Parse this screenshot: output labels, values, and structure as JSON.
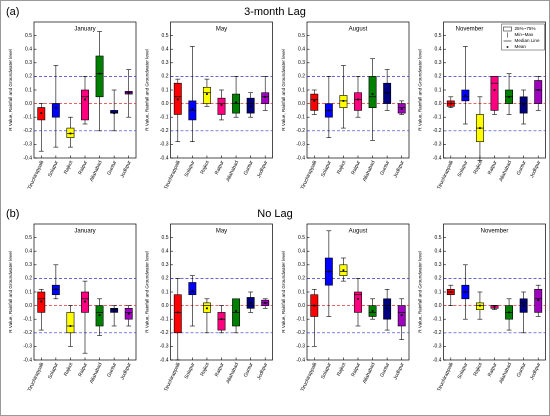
{
  "rows": [
    {
      "label": "(a)",
      "title": "3-month Lag"
    },
    {
      "label": "(b)",
      "title": "No Lag"
    }
  ],
  "chart_data": [
    {
      "type": "box",
      "title": "January",
      "ylabel": "R Value, Rainfall and Groundwater level",
      "categories": [
        "Tiruchirappalli",
        "Solapur",
        "Rajkot",
        "Raipur",
        "Allahabad",
        "Guntur",
        "Jodhpur"
      ],
      "colors": [
        "#ff0000",
        "#0000ff",
        "#ffff00",
        "#ff0080",
        "#008000",
        "#000080",
        "#a000c0"
      ],
      "min": [
        -0.35,
        -0.32,
        -0.32,
        -0.15,
        -0.2,
        -0.2,
        -0.1
      ],
      "q1": [
        -0.12,
        -0.1,
        -0.25,
        -0.12,
        0.05,
        -0.07,
        0.07
      ],
      "median": [
        -0.03,
        0.0,
        -0.22,
        0.05,
        0.22,
        -0.07,
        0.08
      ],
      "q3": [
        -0.03,
        0.0,
        -0.18,
        0.1,
        0.35,
        -0.05,
        0.09
      ],
      "max": [
        0.0,
        0.28,
        -0.1,
        0.2,
        0.53,
        0.1,
        0.25
      ],
      "mean": [
        -0.07,
        -0.03,
        -0.22,
        0.03,
        0.22,
        -0.07,
        0.08
      ],
      "ylim": [
        -0.4,
        0.6
      ],
      "yticks": [
        -0.4,
        -0.3,
        -0.2,
        -0.1,
        {
          "value": 0,
          "label": "0.0"
        },
        0.1,
        0.2,
        0.3,
        0.4,
        0.5
      ],
      "ref_lines": [
        {
          "value": 0.2,
          "color": "#3333cc"
        },
        {
          "value": 0,
          "color": "#dd3333"
        },
        {
          "value": -0.2,
          "color": "#3333cc"
        }
      ]
    },
    {
      "type": "box",
      "title": "May",
      "ylabel": "R Value, Rainfall and Groundwater level",
      "categories": [
        "Tiruchirappalli",
        "Solapur",
        "Rajkot",
        "Raipur",
        "Allahabad",
        "Guntur",
        "Jodhpur"
      ],
      "colors": [
        "#ff0000",
        "#0000ff",
        "#ffff00",
        "#ff0080",
        "#008000",
        "#000080",
        "#a000c0"
      ],
      "min": [
        -0.28,
        -0.28,
        -0.02,
        -0.12,
        -0.1,
        -0.1,
        -0.05
      ],
      "q1": [
        -0.08,
        -0.12,
        0.0,
        -0.08,
        -0.07,
        -0.07,
        0.0
      ],
      "median": [
        0.05,
        -0.05,
        0.08,
        0.0,
        0.0,
        0.0,
        0.05
      ],
      "q3": [
        0.15,
        0.02,
        0.12,
        0.04,
        0.07,
        0.04,
        0.08
      ],
      "max": [
        0.18,
        0.42,
        0.18,
        0.1,
        0.2,
        0.08,
        0.2
      ],
      "mean": [
        0.03,
        -0.04,
        0.07,
        -0.01,
        0.01,
        -0.02,
        0.05
      ],
      "ylim": [
        -0.4,
        0.6
      ],
      "yticks": [
        -0.4,
        -0.3,
        -0.2,
        -0.1,
        {
          "value": 0,
          "label": "0.0"
        },
        0.1,
        0.2,
        0.3,
        0.4,
        0.5
      ],
      "ref_lines": [
        {
          "value": 0.2,
          "color": "#3333cc"
        },
        {
          "value": 0,
          "color": "#dd3333"
        },
        {
          "value": -0.2,
          "color": "#3333cc"
        }
      ]
    },
    {
      "type": "box",
      "title": "August",
      "ylabel": "R Value, Rainfall and Groundwater level",
      "categories": [
        "Tiruchirappalli",
        "Solapur",
        "Rajkot",
        "Raipur",
        "Allahabad",
        "Guntur",
        "Jodhpur"
      ],
      "colors": [
        "#ff0000",
        "#0000ff",
        "#ffff00",
        "#ff0080",
        "#008000",
        "#000080",
        "#a000c0"
      ],
      "min": [
        -0.08,
        -0.25,
        -0.18,
        -0.1,
        -0.27,
        -0.05,
        -0.08
      ],
      "q1": [
        -0.05,
        -0.1,
        -0.03,
        -0.05,
        -0.03,
        0.0,
        -0.07
      ],
      "median": [
        0.03,
        -0.05,
        0.02,
        0.03,
        0.05,
        0.08,
        -0.03
      ],
      "q3": [
        0.07,
        0.0,
        0.06,
        0.08,
        0.2,
        0.15,
        0.0
      ],
      "max": [
        0.1,
        0.2,
        0.28,
        0.2,
        0.33,
        0.25,
        0.02
      ],
      "mean": [
        0.02,
        -0.05,
        0.02,
        0.03,
        0.07,
        0.08,
        -0.04
      ],
      "ylim": [
        -0.4,
        0.6
      ],
      "yticks": [
        -0.4,
        -0.3,
        -0.2,
        -0.1,
        {
          "value": 0,
          "label": "0.0"
        },
        0.1,
        0.2,
        0.3,
        0.4,
        0.5
      ],
      "ref_lines": [
        {
          "value": 0.2,
          "color": "#3333cc"
        },
        {
          "value": 0,
          "color": "#dd3333"
        },
        {
          "value": -0.2,
          "color": "#3333cc"
        }
      ]
    },
    {
      "type": "box",
      "title": "November",
      "ylabel": "R Value, Rainfall and Groundwater level",
      "categories": [
        "Tiruchirappalli",
        "Solapur",
        "Rajkot",
        "Raipur",
        "Allahabad",
        "Guntur",
        "Jodhpur"
      ],
      "colors": [
        "#ff0000",
        "#0000ff",
        "#ffff00",
        "#ff0080",
        "#008000",
        "#000080",
        "#a000c0"
      ],
      "min": [
        -0.03,
        -0.15,
        -0.42,
        -0.08,
        -0.08,
        -0.15,
        -0.05
      ],
      "q1": [
        -0.02,
        0.02,
        -0.28,
        -0.05,
        0.0,
        -0.07,
        0.0
      ],
      "median": [
        0.0,
        0.05,
        -0.18,
        0.15,
        0.05,
        0.0,
        0.1
      ],
      "q3": [
        0.02,
        0.1,
        -0.08,
        0.2,
        0.1,
        0.05,
        0.17
      ],
      "max": [
        0.05,
        0.42,
        0.05,
        0.2,
        0.22,
        0.1,
        0.2
      ],
      "mean": [
        0.0,
        0.06,
        -0.18,
        0.1,
        0.05,
        -0.01,
        0.1
      ],
      "ylim": [
        -0.4,
        0.6
      ],
      "yticks": [
        -0.4,
        -0.3,
        -0.2,
        -0.1,
        {
          "value": 0,
          "label": "0.0"
        },
        0.1,
        0.2,
        0.3,
        0.4,
        0.5
      ],
      "ref_lines": [
        {
          "value": 0.2,
          "color": "#3333cc"
        },
        {
          "value": 0,
          "color": "#dd3333"
        },
        {
          "value": -0.2,
          "color": "#3333cc"
        }
      ],
      "legend": [
        "25%~75%",
        "Min~Max",
        "Median Line",
        "Mean"
      ]
    },
    {
      "type": "box",
      "title": "January",
      "ylabel": "R Value, Rainfall and Groundwater level",
      "categories": [
        "Tiruchirappalli",
        "Solapur",
        "Rajkot",
        "Raipur",
        "Allahabad",
        "Guntur",
        "Jodhpur"
      ],
      "colors": [
        "#ff0000",
        "#0000ff",
        "#ffff00",
        "#ff0080",
        "#008000",
        "#000080",
        "#a000c0"
      ],
      "min": [
        -0.18,
        0.05,
        -0.3,
        -0.35,
        -0.22,
        -0.15,
        -0.15
      ],
      "q1": [
        -0.05,
        0.08,
        -0.2,
        -0.05,
        -0.15,
        -0.05,
        -0.1
      ],
      "median": [
        0.05,
        0.12,
        -0.15,
        0.05,
        -0.05,
        -0.03,
        -0.05
      ],
      "q3": [
        0.1,
        0.15,
        -0.05,
        0.1,
        0.0,
        -0.02,
        -0.02
      ],
      "max": [
        0.12,
        0.3,
        0.0,
        0.18,
        0.05,
        0.0,
        0.0
      ],
      "mean": [
        0.03,
        0.12,
        -0.15,
        0.03,
        -0.07,
        -0.04,
        -0.06
      ],
      "ylim": [
        -0.4,
        0.6
      ],
      "yticks": [
        -0.4,
        -0.3,
        -0.2,
        -0.1,
        {
          "value": 0,
          "label": "0.0"
        },
        0.1,
        0.2,
        0.3,
        0.4,
        0.5
      ],
      "ref_lines": [
        {
          "value": 0.2,
          "color": "#3333cc"
        },
        {
          "value": 0,
          "color": "#dd3333"
        },
        {
          "value": -0.2,
          "color": "#3333cc"
        }
      ]
    },
    {
      "type": "box",
      "title": "May",
      "ylabel": "R Value, Rainfall and Groundwater level",
      "categories": [
        "Tiruchirappalli",
        "Solapur",
        "Rajkot",
        "Raipur",
        "Allahabad",
        "Guntur",
        "Jodhpur"
      ],
      "colors": [
        "#ff0000",
        "#0000ff",
        "#ffff00",
        "#ff0080",
        "#008000",
        "#000080",
        "#a000c0"
      ],
      "min": [
        -0.4,
        -0.15,
        -0.2,
        -0.2,
        -0.2,
        -0.05,
        -0.02
      ],
      "q1": [
        -0.2,
        0.08,
        -0.05,
        -0.18,
        -0.15,
        -0.02,
        0.0
      ],
      "median": [
        -0.05,
        0.1,
        0.0,
        -0.1,
        -0.05,
        0.0,
        0.02
      ],
      "q3": [
        0.08,
        0.17,
        0.02,
        -0.05,
        0.05,
        0.06,
        0.04
      ],
      "max": [
        0.2,
        0.22,
        0.05,
        0.0,
        0.05,
        0.1,
        0.05
      ],
      "mean": [
        -0.05,
        0.11,
        -0.02,
        -0.1,
        -0.04,
        0.02,
        0.02
      ],
      "ylim": [
        -0.4,
        0.6
      ],
      "yticks": [
        -0.4,
        -0.3,
        -0.2,
        -0.1,
        {
          "value": 0,
          "label": "0.0"
        },
        0.1,
        0.2,
        0.3,
        0.4,
        0.5
      ],
      "ref_lines": [
        {
          "value": 0.2,
          "color": "#3333cc"
        },
        {
          "value": 0,
          "color": "#dd3333"
        },
        {
          "value": -0.2,
          "color": "#3333cc"
        }
      ]
    },
    {
      "type": "box",
      "title": "August",
      "ylabel": "R Value, Rainfall and Groundwater level",
      "categories": [
        "Tiruchirappalli",
        "Solapur",
        "Rajkot",
        "Raipur",
        "Allahabad",
        "Guntur",
        "Jodhpur"
      ],
      "colors": [
        "#ff0000",
        "#0000ff",
        "#ffff00",
        "#ff0080",
        "#008000",
        "#000080",
        "#a000c0"
      ],
      "min": [
        -0.3,
        -0.08,
        0.18,
        -0.15,
        -0.1,
        -0.18,
        -0.25
      ],
      "q1": [
        -0.08,
        0.15,
        0.22,
        -0.05,
        -0.08,
        -0.1,
        -0.15
      ],
      "median": [
        0.0,
        0.25,
        0.25,
        0.08,
        -0.05,
        0.0,
        -0.05
      ],
      "q3": [
        0.08,
        0.35,
        0.3,
        0.1,
        0.0,
        0.05,
        0.0
      ],
      "max": [
        0.12,
        0.55,
        0.35,
        0.2,
        0.05,
        0.12,
        0.05
      ],
      "mean": [
        0.0,
        0.25,
        0.26,
        0.05,
        -0.04,
        -0.02,
        -0.07
      ],
      "ylim": [
        -0.4,
        0.6
      ],
      "yticks": [
        -0.4,
        -0.3,
        -0.2,
        -0.1,
        {
          "value": 0,
          "label": "0.0"
        },
        0.1,
        0.2,
        0.3,
        0.4,
        0.5
      ],
      "ref_lines": [
        {
          "value": 0.2,
          "color": "#3333cc"
        },
        {
          "value": 0,
          "color": "#dd3333"
        },
        {
          "value": -0.2,
          "color": "#3333cc"
        }
      ]
    },
    {
      "type": "box",
      "title": "November",
      "ylabel": "R Value, Rainfall and Groundwater level",
      "categories": [
        "Tiruchirappalli",
        "Solapur",
        "Rajkot",
        "Raipur",
        "Allahabad",
        "Guntur",
        "Jodhpur"
      ],
      "colors": [
        "#ff0000",
        "#0000ff",
        "#ffff00",
        "#ff0080",
        "#008000",
        "#000080",
        "#a000c0"
      ],
      "min": [
        0.0,
        -0.1,
        -0.1,
        -0.03,
        -0.18,
        -0.2,
        -0.08
      ],
      "q1": [
        0.08,
        0.05,
        -0.03,
        -0.02,
        -0.1,
        -0.05,
        -0.05
      ],
      "median": [
        0.1,
        0.1,
        0.0,
        0.0,
        -0.05,
        0.02,
        0.05
      ],
      "q3": [
        0.12,
        0.15,
        0.02,
        0.0,
        0.0,
        0.05,
        0.12
      ],
      "max": [
        0.15,
        0.3,
        0.1,
        0.0,
        0.05,
        0.1,
        0.15
      ],
      "mean": [
        0.1,
        0.1,
        0.0,
        -0.01,
        -0.05,
        0.0,
        0.04
      ],
      "ylim": [
        -0.4,
        0.6
      ],
      "yticks": [
        -0.4,
        -0.3,
        -0.2,
        -0.1,
        {
          "value": 0,
          "label": "0.0"
        },
        0.1,
        0.2,
        0.3,
        0.4,
        0.5
      ],
      "ref_lines": [
        {
          "value": 0.2,
          "color": "#3333cc"
        },
        {
          "value": 0,
          "color": "#dd3333"
        },
        {
          "value": -0.2,
          "color": "#3333cc"
        }
      ]
    }
  ]
}
